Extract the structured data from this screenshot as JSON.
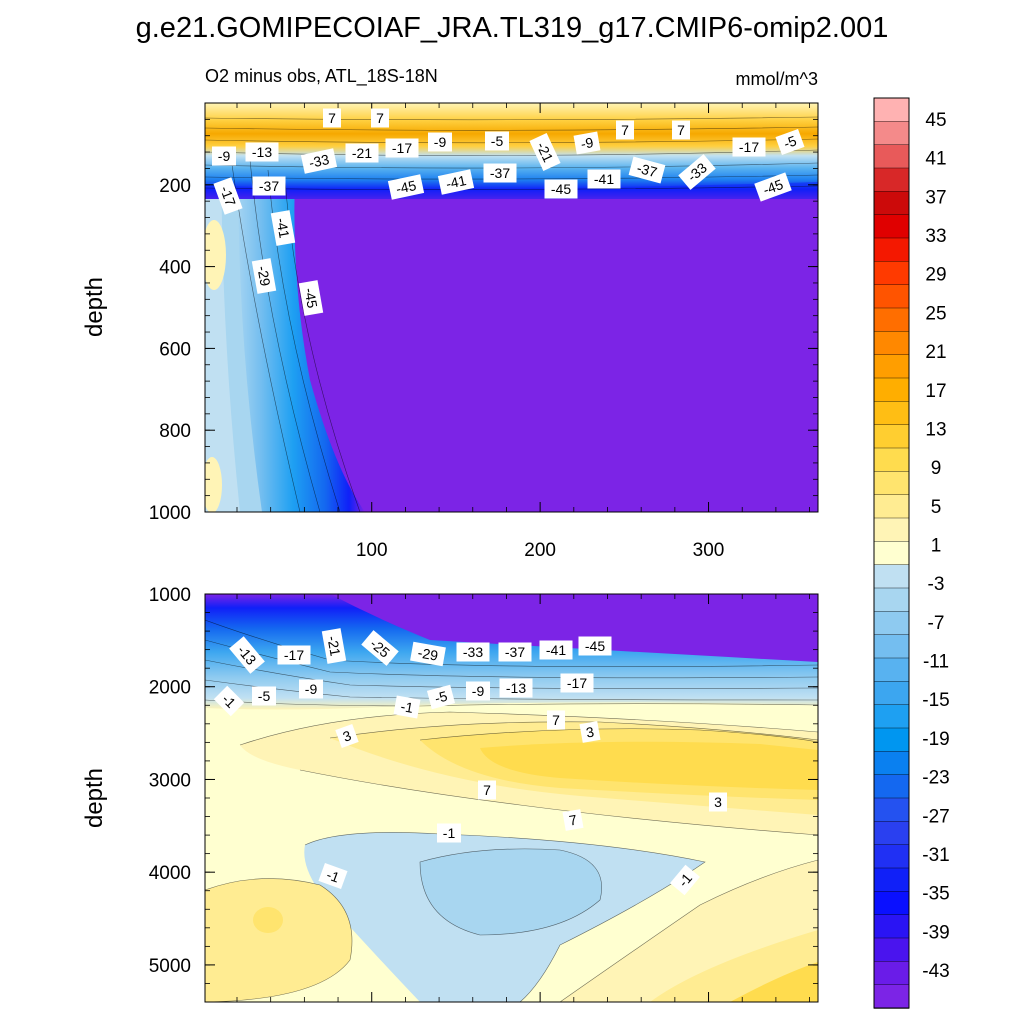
{
  "title": "g.e21.GOMIPECOIAF_JRA.TL319_g17.CMIP6-omip2.001",
  "chart_data": [
    {
      "type": "heatmap",
      "panel": "upper",
      "subtitle_left": "O2 minus obs, ATL_18S-18N",
      "subtitle_right": "mmol/m^3",
      "ylabel": "depth",
      "xlabel": "",
      "xlim": [
        1,
        365
      ],
      "ylim": [
        1000,
        0
      ],
      "x_ticks": [
        "100",
        "200",
        "300"
      ],
      "y_ticks": [
        "200",
        "400",
        "600",
        "800",
        "1000"
      ],
      "contour_labels": [
        "7",
        "7",
        "-9",
        "-13",
        "-33",
        "-21",
        "-17",
        "-9",
        "-5",
        "-21",
        "-9",
        "7",
        "7",
        "-17",
        "-5",
        "-17",
        "-37",
        "-45",
        "-41",
        "-37",
        "-45",
        "-41",
        "-37",
        "-33",
        "-45",
        "-41",
        "-29",
        "-45"
      ]
    },
    {
      "type": "heatmap",
      "panel": "lower",
      "ylabel": "depth",
      "xlim": [
        1,
        365
      ],
      "ylim": [
        5400,
        1000
      ],
      "y_ticks": [
        "1000",
        "2000",
        "3000",
        "4000",
        "5000"
      ],
      "contour_labels": [
        "-13",
        "-17",
        "-21",
        "-25",
        "-29",
        "-33",
        "-37",
        "-41",
        "-45",
        "-1",
        "-5",
        "-9",
        "-1",
        "-5",
        "-9",
        "-13",
        "-17",
        "3",
        "7",
        "3",
        "7",
        "3",
        "7",
        "-1",
        "-1",
        "-1"
      ]
    }
  ],
  "colorbar": {
    "labels": [
      "45",
      "41",
      "37",
      "33",
      "29",
      "25",
      "21",
      "17",
      "13",
      "9",
      "5",
      "1",
      "-3",
      "-7",
      "-11",
      "-15",
      "-19",
      "-23",
      "-27",
      "-31",
      "-35",
      "-39",
      "-43"
    ],
    "colors": [
      "#ffb2b2",
      "#f48a8a",
      "#e85a5a",
      "#d82828",
      "#cc0a0a",
      "#e00000",
      "#f41800",
      "#ff3a00",
      "#ff5400",
      "#ff6e00",
      "#ff8800",
      "#ff9e00",
      "#ffae00",
      "#ffbe14",
      "#ffce30",
      "#ffdc4e",
      "#ffe46e",
      "#ffec92",
      "#fff4b6",
      "#ffffd0",
      "#c0e0f2",
      "#a8d6f0",
      "#8ecaf0",
      "#74bef0",
      "#58b2f0",
      "#3ca6f0",
      "#1ea0f2",
      "#0096f0",
      "#0a80f0",
      "#1468f0",
      "#2452f0",
      "#2a40f0",
      "#2030f4",
      "#1020f8",
      "#0a10ff",
      "#2a14f4",
      "#4a14ee",
      "#6a1ce8",
      "#7c24e6"
    ]
  }
}
